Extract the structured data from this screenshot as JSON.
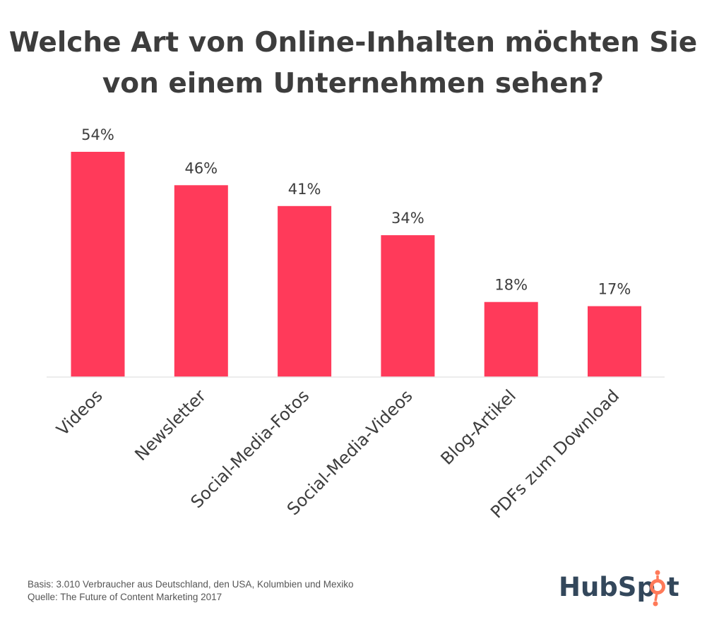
{
  "title_lines": [
    "Welche Art von Online-Inhalten möchten Sie",
    "von einem Unternehmen sehen?"
  ],
  "footnote": {
    "basis": "Basis: 3.010 Verbraucher aus Deutschland, den USA, Kolumbien und Mexiko",
    "source": "Quelle: The Future of Content Marketing 2017"
  },
  "brand": {
    "logo_text_left": "HubSp",
    "logo_text_right": "t",
    "accent_color": "#ff3a5a",
    "logo_color": "#33475b",
    "sprocket_color": "#ff7a59"
  },
  "chart_data": {
    "type": "bar",
    "title": "Welche Art von Online-Inhalten möchten Sie von einem Unternehmen sehen?",
    "categories": [
      "Videos",
      "Newsletter",
      "Social-Media-Fotos",
      "Social-Media-Videos",
      "Blog-Artikel",
      "PDFs zum Download"
    ],
    "values": [
      54,
      46,
      41,
      34,
      18,
      17
    ],
    "value_labels": [
      "54%",
      "46%",
      "41%",
      "34%",
      "18%",
      "17%"
    ],
    "unit": "%",
    "xlabel": "",
    "ylabel": "",
    "ylim": [
      0,
      54
    ],
    "grid": false,
    "legend": "none",
    "bar_color": "#ff3a5a"
  }
}
